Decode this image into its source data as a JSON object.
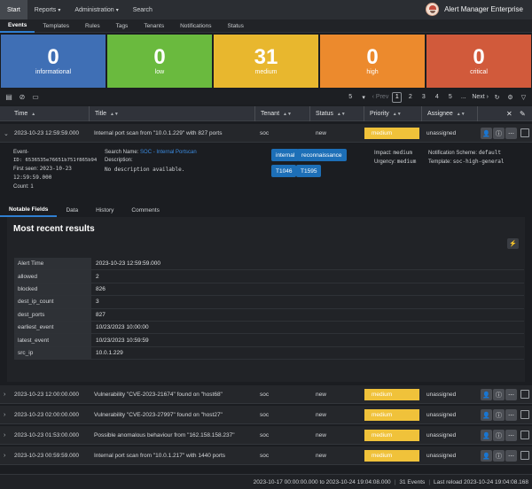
{
  "topnav": {
    "items": [
      {
        "label": "Start",
        "active": true,
        "dropdown": false
      },
      {
        "label": "Reports",
        "active": false,
        "dropdown": true
      },
      {
        "label": "Administration",
        "active": false,
        "dropdown": true
      },
      {
        "label": "Search",
        "active": false,
        "dropdown": false
      }
    ],
    "app_name": "Alert Manager Enterprise"
  },
  "subnav": {
    "items": [
      "Events",
      "Templates",
      "Rules",
      "Tags",
      "Tenants",
      "Notifications",
      "Status"
    ],
    "active": "Events"
  },
  "tiles": [
    {
      "count": "0",
      "label": "informational",
      "color": "#3f6fb5"
    },
    {
      "count": "0",
      "label": "low",
      "color": "#6aba3e"
    },
    {
      "count": "31",
      "label": "medium",
      "color": "#e8b72e"
    },
    {
      "count": "0",
      "label": "high",
      "color": "#ec8a2d"
    },
    {
      "count": "0",
      "label": "critical",
      "color": "#d15a3b"
    }
  ],
  "pager": {
    "page_size": "5",
    "prev": "‹ Prev",
    "pages": [
      "1",
      "2",
      "3",
      "4",
      "5"
    ],
    "current": "1",
    "ellipsis": "...",
    "next": "Next ›"
  },
  "table": {
    "columns": [
      "Time",
      "Title",
      "Tenant",
      "Status",
      "Priority",
      "Assignee"
    ],
    "rows": [
      {
        "time": "2023-10-23 12:59:59.000",
        "title": "Internal port scan from \"10.0.1.229\" with 827 ports",
        "tenant": "soc",
        "status": "new",
        "priority": "medium",
        "assignee": "unassigned",
        "expanded": true
      },
      {
        "time": "2023-10-23 12:00:00.000",
        "title": "Vulnerability \"CVE-2023-21674\" found on \"host68\"",
        "tenant": "soc",
        "status": "new",
        "priority": "medium",
        "assignee": "unassigned",
        "expanded": false
      },
      {
        "time": "2023-10-23 02:00:00.000",
        "title": "Vulnerability \"CVE-2023-27997\" found on \"host27\"",
        "tenant": "soc",
        "status": "new",
        "priority": "medium",
        "assignee": "unassigned",
        "expanded": false
      },
      {
        "time": "2023-10-23 01:53:00.000",
        "title": "Possible anomalous behaviour from \"162.158.158.237\"",
        "tenant": "soc",
        "status": "new",
        "priority": "medium",
        "assignee": "unassigned",
        "expanded": false
      },
      {
        "time": "2023-10-23 00:59:59.000",
        "title": "Internal port scan from \"10.0.1.217\" with 1440 ports",
        "tenant": "soc",
        "status": "new",
        "priority": "medium",
        "assignee": "unassigned",
        "expanded": false
      }
    ]
  },
  "detail": {
    "event_label": "Event-",
    "event_id": "ID: 6536535e76651b751f865b94",
    "first_seen_label": "First seen:",
    "first_seen_value": "2023-10-23",
    "first_seen_time": "12:59:59.000",
    "count": "Count: 1",
    "search_name_label": "Search Name:",
    "search_name_value": "SOC - Internal Portscan",
    "description_label": "Description:",
    "description_value": "No description available.",
    "tags": [
      "internal",
      "reconnaissance",
      "T1046",
      "T1595"
    ],
    "impact_label": "Impact:",
    "impact_value": "medium",
    "urgency_label": "Urgency:",
    "urgency_value": "medium",
    "notification_label": "Notification Scheme:",
    "notification_value": "default",
    "template_label": "Template:",
    "template_value": "soc-high-general",
    "tabs": [
      "Notable Fields",
      "Data",
      "History",
      "Comments"
    ],
    "active_tab": "Notable Fields",
    "results_title": "Most recent results",
    "fields": [
      {
        "key": "Alert Time",
        "value": "2023-10-23 12:59:59.000"
      },
      {
        "key": "allowed",
        "value": "2"
      },
      {
        "key": "blocked",
        "value": "826"
      },
      {
        "key": "dest_ip_count",
        "value": "3"
      },
      {
        "key": "dest_ports",
        "value": "827"
      },
      {
        "key": "earliest_event",
        "value": "10/23/2023 10:00:00"
      },
      {
        "key": "latest_event",
        "value": "10/23/2023 10:59:59"
      },
      {
        "key": "src_ip",
        "value": "10.0.1.229"
      }
    ]
  },
  "footer": {
    "range": "2023-10-17 00:00:00.000 to 2023-10-24 19:04:08.000",
    "events": "31 Events",
    "last_reload": "Last reload 2023-10-24 19:04:08.168"
  },
  "colors": {
    "priority_medium": "#f0c23a",
    "tag": "#1d6fb7",
    "accent": "#2f7fd1"
  }
}
